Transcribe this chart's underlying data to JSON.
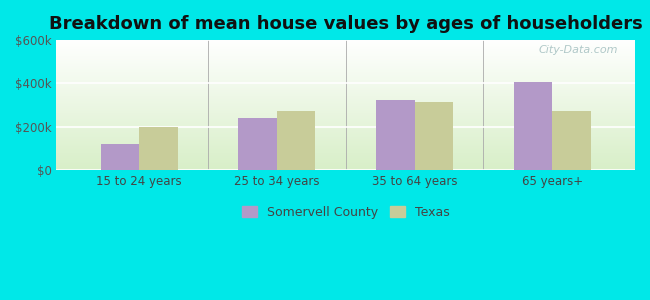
{
  "title": "Breakdown of mean house values by ages of householders",
  "categories": [
    "15 to 24 years",
    "25 to 34 years",
    "35 to 64 years",
    "65 years+"
  ],
  "somervell_values": [
    120000,
    240000,
    325000,
    405000
  ],
  "texas_values": [
    198000,
    272000,
    315000,
    272000
  ],
  "somervell_color": "#b399c8",
  "texas_color": "#c8cc99",
  "ylim": [
    0,
    600000
  ],
  "yticks": [
    0,
    200000,
    400000,
    600000
  ],
  "ytick_labels": [
    "$0",
    "$200k",
    "$400k",
    "$600k"
  ],
  "outer_bg": "#00e8e8",
  "legend_labels": [
    "Somervell County",
    "Texas"
  ],
  "bar_width": 0.28,
  "title_fontsize": 13,
  "watermark": "City-Data.com"
}
